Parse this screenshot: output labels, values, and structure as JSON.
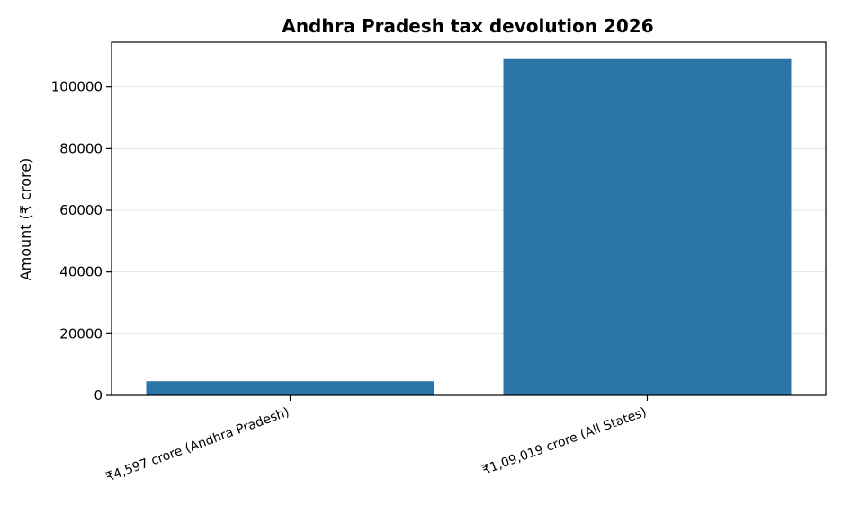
{
  "chart_data": {
    "type": "bar",
    "title": "Andhra Pradesh tax devolution 2026",
    "xlabel": "",
    "ylabel": "Amount (₹ crore)",
    "categories": [
      "₹4,597 crore (Andhra Pradesh)",
      "₹1,09,019 crore (All States)"
    ],
    "values": [
      4597,
      109019
    ],
    "ylim": [
      0,
      114470
    ],
    "yticks": [
      0,
      20000,
      40000,
      60000,
      80000,
      100000
    ],
    "grid": "y",
    "bar_color": "#2a74a8"
  }
}
